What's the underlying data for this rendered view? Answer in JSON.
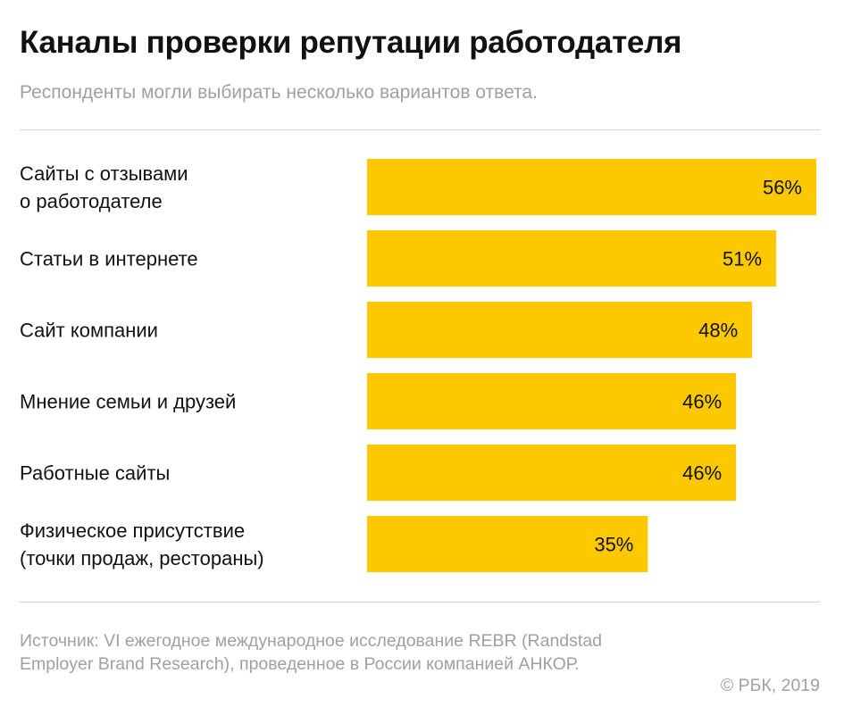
{
  "title": "Каналы проверки репутации работодателя",
  "subtitle": "Респонденты могли выбирать несколько вариантов ответа.",
  "colors": {
    "bar": "#FCC800",
    "text": "#111111",
    "muted": "#A0A0A0",
    "rule": "#D4D4D4"
  },
  "chart_data": {
    "type": "bar",
    "orientation": "horizontal",
    "categories": [
      [
        "Сайты с отзывами",
        "о работодателе"
      ],
      [
        "Статьи в интернете"
      ],
      [
        "Сайт компании"
      ],
      [
        "Мнение семьи и друзей"
      ],
      [
        "Работные сайты"
      ],
      [
        "Физическое присутствие",
        "(точки продаж, рестораны)"
      ]
    ],
    "values": [
      56,
      51,
      48,
      46,
      46,
      35
    ],
    "value_labels": [
      "56%",
      "51%",
      "48%",
      "46%",
      "46%",
      "35%"
    ],
    "unit": "%",
    "xlim": [
      0,
      56
    ],
    "grid": false,
    "legend": "none"
  },
  "source": "Источник: VI ежегодное международное исследование REBR (Randstad Employer Brand Research), проведенное в России компанией АНКОР.",
  "copyright": "© РБК, 2019"
}
